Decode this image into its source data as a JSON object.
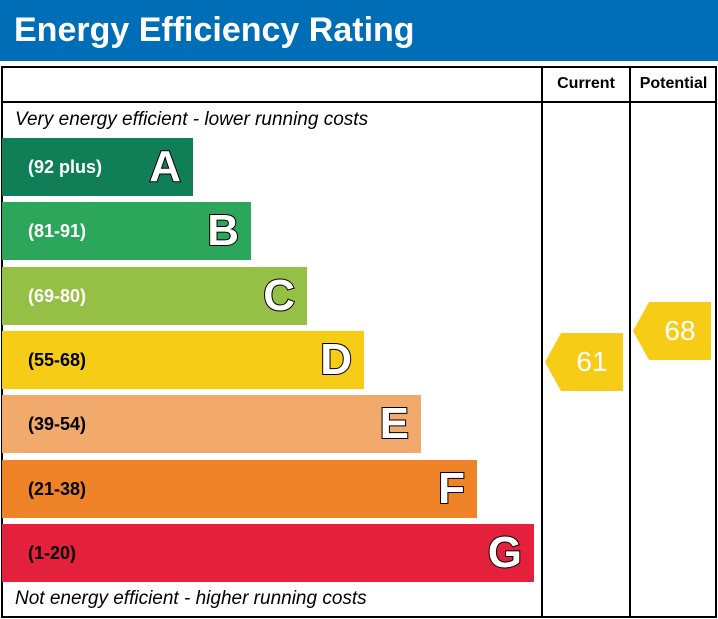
{
  "title": "Energy Efficiency Rating",
  "chart_data": {
    "type": "bar",
    "columns": [
      "Current",
      "Potential"
    ],
    "top_note": "Very energy efficient - lower running costs",
    "bottom_note": "Not energy efficient - higher running costs",
    "bands": [
      {
        "letter": "A",
        "range": "(92 plus)",
        "color": "#107f58"
      },
      {
        "letter": "B",
        "range": "(81-91)",
        "color": "#2ca65a"
      },
      {
        "letter": "C",
        "range": "(69-80)",
        "color": "#95bf45"
      },
      {
        "letter": "D",
        "range": "(55-68)",
        "color": "#f6cc17"
      },
      {
        "letter": "E",
        "range": "(39-54)",
        "color": "#f2aa6c"
      },
      {
        "letter": "F",
        "range": "(21-38)",
        "color": "#ee8328"
      },
      {
        "letter": "G",
        "range": "(1-20)",
        "color": "#e3213c"
      }
    ],
    "current": {
      "value": "61",
      "color": "#f6cc17"
    },
    "potential": {
      "value": "68",
      "color": "#f6cc17"
    }
  }
}
